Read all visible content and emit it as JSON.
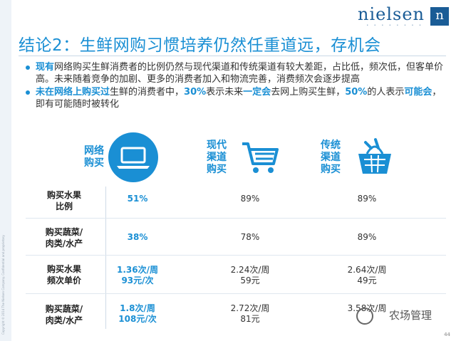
{
  "brand": {
    "name": "nielsen",
    "mark": "n"
  },
  "title": "结论2：生鲜网购习惯培养仍然任重道远，存机会",
  "bullets": [
    {
      "parts": [
        {
          "t": "现有",
          "hl": true
        },
        {
          "t": "网络购买生鲜消费者的比例仍然与现代渠道和传统渠道有较大差距，占比低，频次低，但客单价高。未来随着竞争的加剧、更多的消费者加入和物流完善，消费频次会逐步提高",
          "hl": false
        }
      ]
    },
    {
      "parts": [
        {
          "t": "未在网络上购买过",
          "hl": true
        },
        {
          "t": "生鲜的消费者中，",
          "hl": false
        },
        {
          "t": "30%",
          "hl": true
        },
        {
          "t": "表示未来",
          "hl": false
        },
        {
          "t": "一定会",
          "hl": true
        },
        {
          "t": "去网上购买生鲜，",
          "hl": false
        },
        {
          "t": "50%",
          "hl": true
        },
        {
          "t": "的人表示",
          "hl": false
        },
        {
          "t": "可能会",
          "hl": true
        },
        {
          "t": "，即有可能随时被转化",
          "hl": false
        }
      ]
    }
  ],
  "columns": [
    {
      "label_line1": "网络",
      "label_line2": "购买",
      "icon": "laptop-icon"
    },
    {
      "label_line1": "现代",
      "label_line2": "渠道",
      "label_line3": "购买",
      "icon": "shopping-cart-icon"
    },
    {
      "label_line1": "传统",
      "label_line2": "渠道",
      "label_line3": "购买",
      "icon": "basket-icon"
    }
  ],
  "rows": [
    {
      "label_line1": "购买水果",
      "label_line2": "比例",
      "online": [
        "51%"
      ],
      "modern": [
        "89%"
      ],
      "traditional": [
        "89%"
      ]
    },
    {
      "label_line1": "购买蔬菜/",
      "label_line2": "肉类/水产",
      "online": [
        "38%"
      ],
      "modern": [
        "78%"
      ],
      "traditional": [
        "89%"
      ]
    },
    {
      "label_line1": "购买水果",
      "label_line2": "频次单价",
      "online": [
        "1.36次/周",
        "93元/次"
      ],
      "modern": [
        "2.24次/周",
        "59元"
      ],
      "traditional": [
        "2.64次/周",
        "49元"
      ]
    },
    {
      "label_line1": "购买蔬菜/",
      "label_line2": "肉类/水产",
      "online": [
        "1.8次/周",
        "108元/次"
      ],
      "modern": [
        "2.72次/周",
        "81元"
      ],
      "traditional": [
        "3.58次/周",
        "—"
      ]
    }
  ],
  "watermark": "农场管理",
  "page_number": "44",
  "colors": {
    "accent": "#1a8fd4",
    "brand": "#1a5c96"
  }
}
